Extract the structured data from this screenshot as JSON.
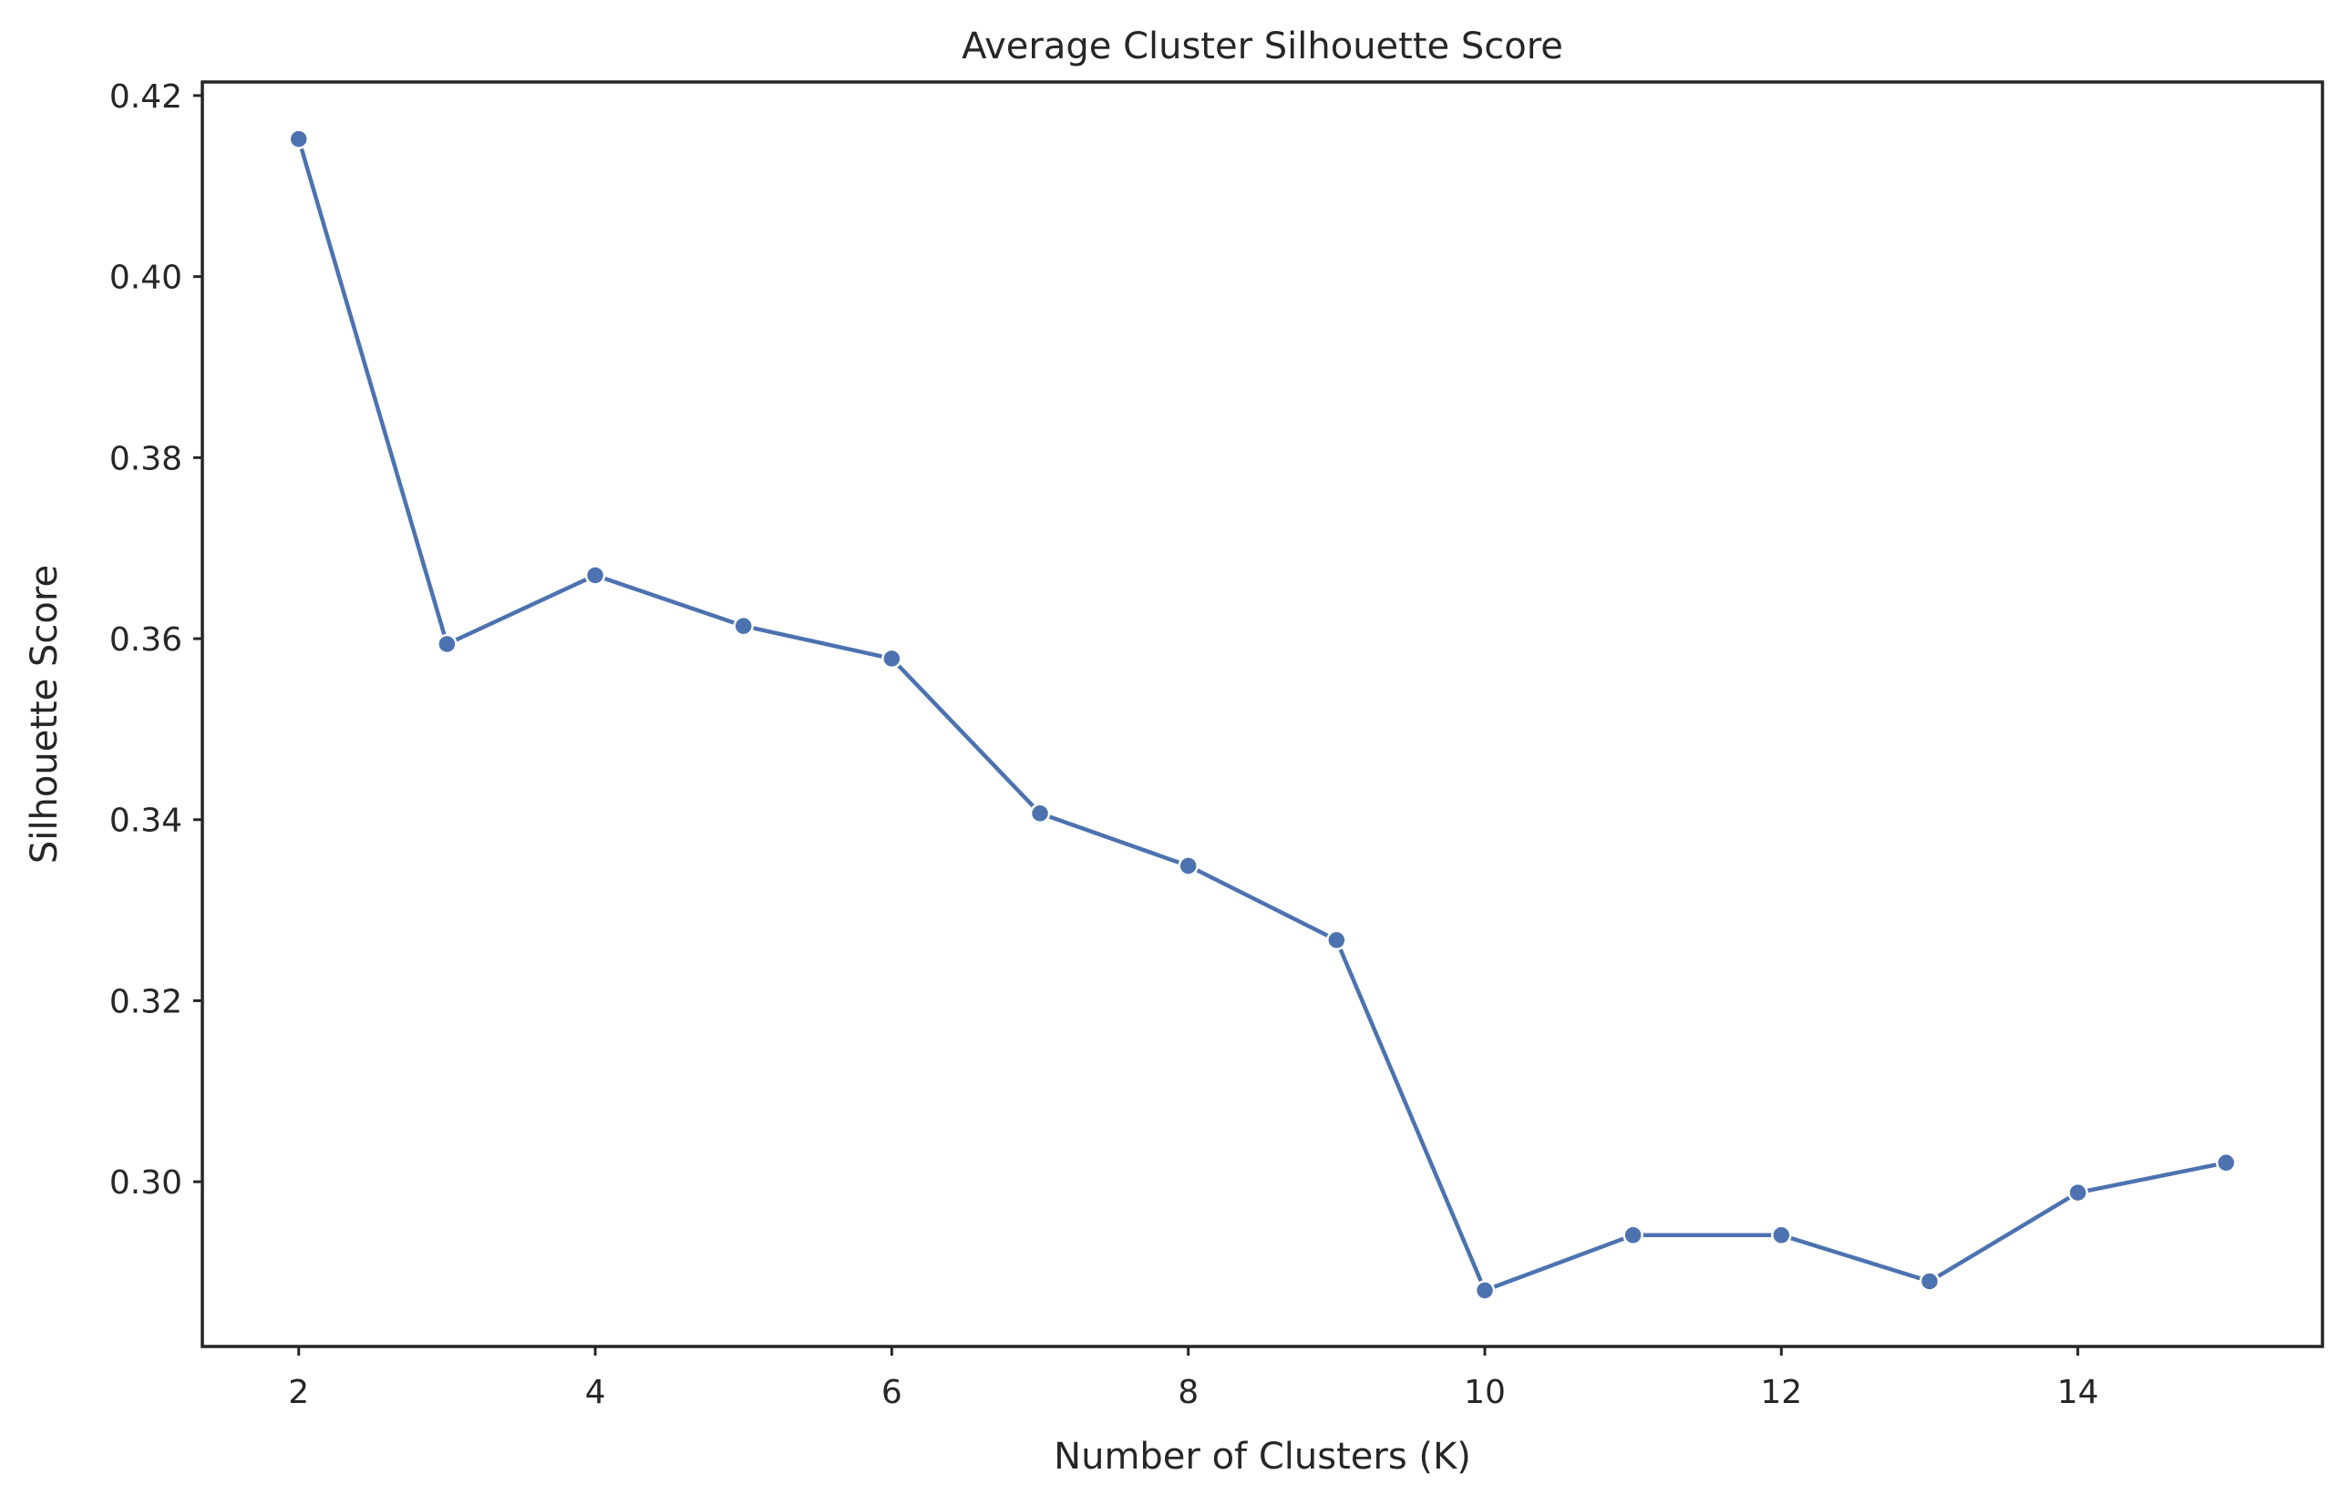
{
  "chart_data": {
    "type": "line",
    "title": "Average Cluster Silhouette Score",
    "xlabel": "Number of Clusters (K)",
    "ylabel": "Silhouette Score",
    "x": [
      2,
      3,
      4,
      5,
      6,
      7,
      8,
      9,
      10,
      11,
      12,
      13,
      14,
      15
    ],
    "series": [
      {
        "values": [
          0.4152,
          0.3594,
          0.367,
          0.3614,
          0.3578,
          0.3407,
          0.3349,
          0.3267,
          0.288,
          0.2941,
          0.2941,
          0.289,
          0.2988,
          0.3021
        ]
      }
    ],
    "xlim": [
      1.35,
      15.65
    ],
    "ylim": [
      0.2818,
      0.4215
    ],
    "xticks": [
      2,
      4,
      6,
      8,
      10,
      12,
      14
    ],
    "yticks": [
      0.3,
      0.32,
      0.34,
      0.36,
      0.38,
      0.4,
      0.42
    ],
    "ytick_labels": [
      "0.30",
      "0.32",
      "0.34",
      "0.36",
      "0.38",
      "0.40",
      "0.42"
    ],
    "grid": false,
    "line_color": "#4c72b0"
  }
}
